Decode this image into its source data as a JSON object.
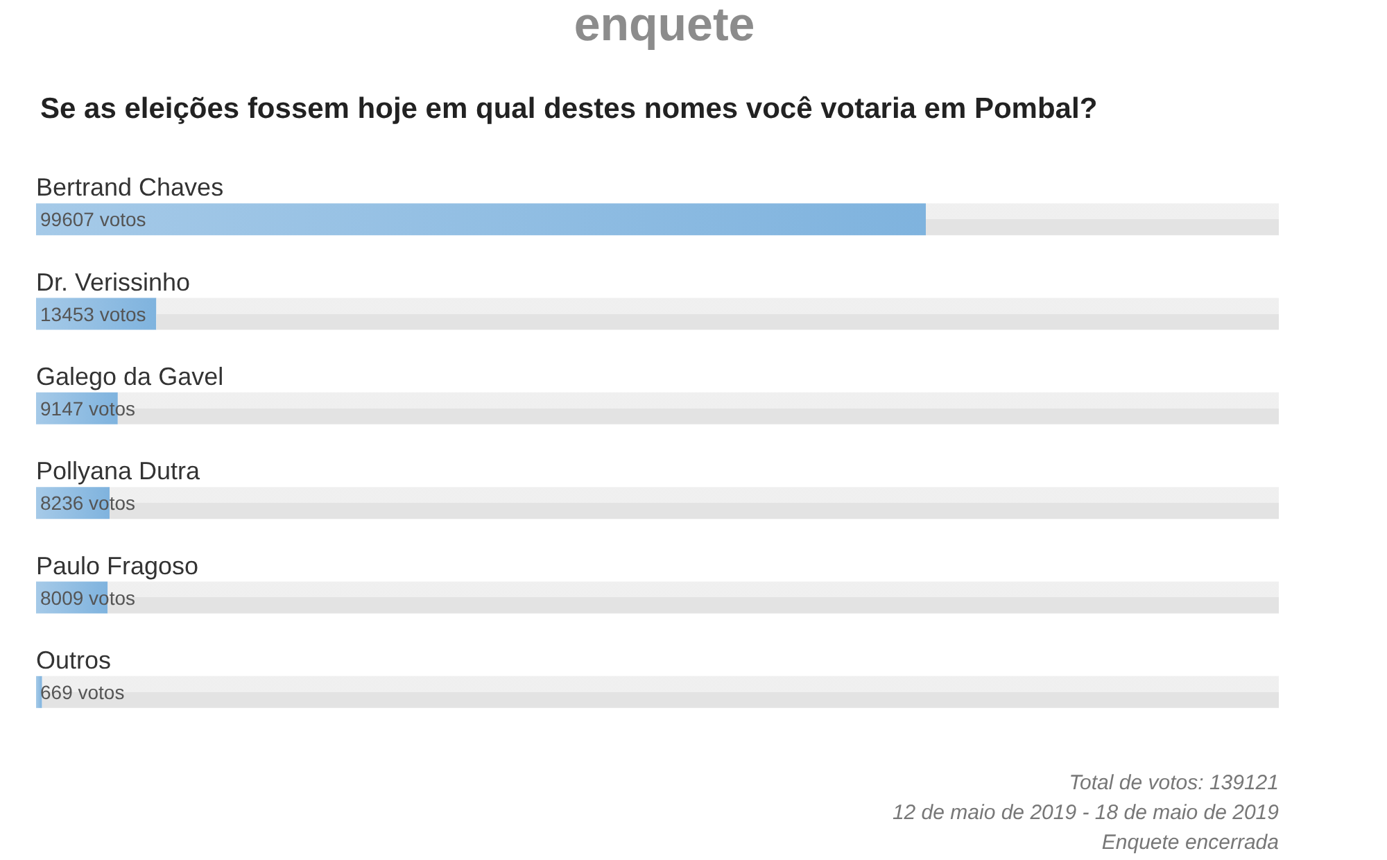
{
  "chart_data": {
    "type": "bar",
    "orientation": "horizontal",
    "stacked": true,
    "title": "enquete",
    "subtitle": "Se as eleições fossem hoje em qual destes nomes você votaria em Pombal?",
    "categories": [
      "Bertrand Chaves",
      "Dr. Verissinho",
      "Galego da Gavel",
      "Pollyana Dutra",
      "Paulo Fragoso",
      "Outros"
    ],
    "series": [
      {
        "color": "#7fb3de",
        "values": [
          99607,
          13453,
          9147,
          8236,
          8009,
          669
        ],
        "value_labels": [
          "99607 votos",
          "13453 votos",
          "9147 votos",
          "8236 votos",
          "8009 votos",
          "669 votos"
        ]
      },
      {
        "color": "#e3e3e3",
        "values": [
          39514,
          125668,
          129974,
          130885,
          131112,
          138452
        ]
      }
    ],
    "xlim": [
      0,
      139121
    ],
    "tick_labels": "y",
    "annotations": [
      "Total de votos: 139121",
      "12 de maio de 2019 - 18 de maio de 2019",
      "Enquete encerrada"
    ]
  }
}
